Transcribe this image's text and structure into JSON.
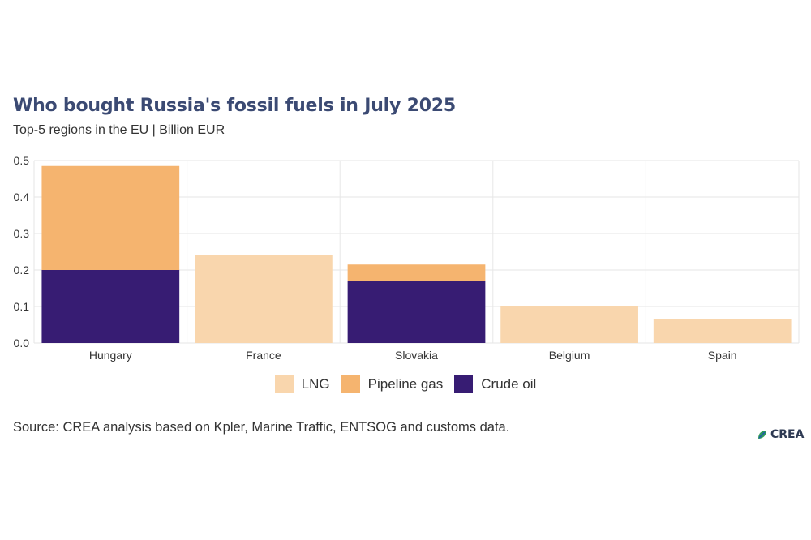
{
  "title": "Who bought Russia's fossil fuels in July 2025",
  "subtitle": "Top-5 regions in the EU | Billion EUR",
  "source": "Source: CREA analysis based on Kpler, Marine Traffic, ENTSOG and customs data.",
  "logo": {
    "icon": "leaf-icon",
    "text": "CREA"
  },
  "colors": {
    "LNG": "#f9d6ad",
    "Pipeline gas": "#f5b46f",
    "Crude oil": "#371c73",
    "grid": "#e6e6e6"
  },
  "chart_data": {
    "type": "bar",
    "stacked": true,
    "categories": [
      "Hungary",
      "France",
      "Slovakia",
      "Belgium",
      "Spain"
    ],
    "series": [
      {
        "name": "Crude oil",
        "values": [
          0.2,
          0,
          0.17,
          0,
          0
        ]
      },
      {
        "name": "Pipeline gas",
        "values": [
          0.285,
          0,
          0.045,
          0,
          0
        ]
      },
      {
        "name": "LNG",
        "values": [
          0,
          0.24,
          0,
          0.102,
          0.066
        ]
      }
    ],
    "legend_order": [
      "LNG",
      "Pipeline gas",
      "Crude oil"
    ],
    "ylim": [
      0,
      0.5
    ],
    "yticks": [
      "0.0",
      "0.1",
      "0.2",
      "0.3",
      "0.4",
      "0.5"
    ],
    "grid": true,
    "legend_position": "bottom"
  }
}
